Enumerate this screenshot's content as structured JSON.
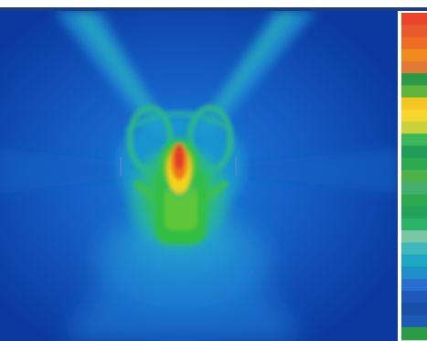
{
  "image": {
    "kind": "false-colour field visualization",
    "colormap": [
      "#0a3aa0",
      "#1560c8",
      "#1a9ad0",
      "#23b890",
      "#2dbb45",
      "#9ccc2a",
      "#f1d017",
      "#f5951c",
      "#e9442a"
    ],
    "background_color": "#0a3a9a",
    "hotspot_color": "#e9442a"
  },
  "color_scale": {
    "bands": [
      "#e9442a",
      "#e85a2a",
      "#ee6c23",
      "#f08a1e",
      "#e07a35",
      "#2d9a48",
      "#5fb53a",
      "#f3c622",
      "#f6d52f",
      "#c9d23a",
      "#3eb65a",
      "#239c5a",
      "#2fa94f",
      "#4bb148",
      "#45b06e",
      "#2ea94f",
      "#23a35a",
      "#2bb36a",
      "#7ac7a6",
      "#40b8ba",
      "#1fa6c4",
      "#1f8fc7",
      "#2a6ed0",
      "#1d58b8",
      "#174ea6",
      "#1b5ab5",
      "#2d9a48"
    ]
  }
}
